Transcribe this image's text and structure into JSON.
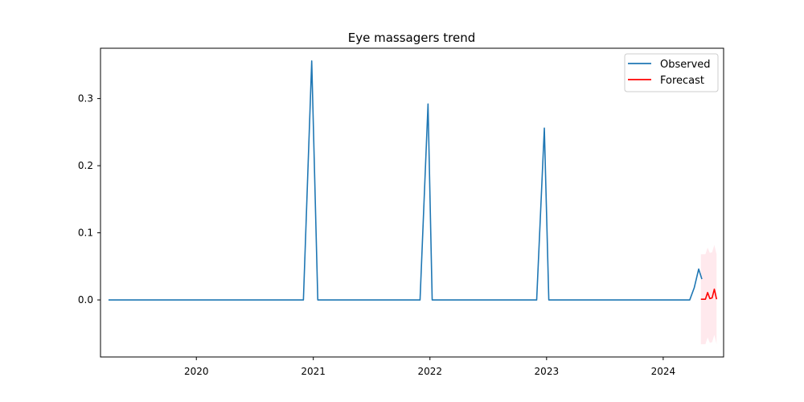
{
  "chart_data": {
    "type": "line",
    "title": "Eye massagers trend",
    "xlabel": "",
    "ylabel": "",
    "x_ticks": [
      "2020",
      "2021",
      "2022",
      "2023",
      "2024"
    ],
    "y_ticks": [
      "0.0",
      "0.1",
      "0.2",
      "0.3"
    ],
    "xlim": [
      "2019-03-07",
      "2024-07-08"
    ],
    "ylim": [
      -0.085,
      0.375
    ],
    "grid": false,
    "legend_position": "top-right",
    "series": [
      {
        "name": "Observed",
        "color": "#1f77b4",
        "points": [
          [
            "2019-04-01",
            0.0
          ],
          [
            "2020-12-01",
            0.0
          ],
          [
            "2020-12-27",
            0.356
          ],
          [
            "2021-01-15",
            0.0
          ],
          [
            "2021-12-01",
            0.0
          ],
          [
            "2021-12-26",
            0.292
          ],
          [
            "2022-01-08",
            0.0
          ],
          [
            "2022-12-01",
            0.0
          ],
          [
            "2022-12-25",
            0.256
          ],
          [
            "2023-01-08",
            0.0
          ],
          [
            "2024-03-24",
            0.0
          ],
          [
            "2024-04-07",
            0.018
          ],
          [
            "2024-04-21",
            0.046
          ],
          [
            "2024-05-01",
            0.031
          ]
        ]
      },
      {
        "name": "Forecast",
        "color": "#ff0000",
        "points": [
          [
            "2024-04-28",
            0.001
          ],
          [
            "2024-05-12",
            0.001
          ],
          [
            "2024-05-19",
            0.011
          ],
          [
            "2024-05-26",
            0.002
          ],
          [
            "2024-06-02",
            0.003
          ],
          [
            "2024-06-09",
            0.016
          ],
          [
            "2024-06-16",
            0.001
          ]
        ]
      }
    ],
    "confidence_band": {
      "color": "#ffc0cb",
      "points": [
        [
          "2024-04-28",
          -0.066,
          0.068
        ],
        [
          "2024-05-12",
          -0.066,
          0.068
        ],
        [
          "2024-05-19",
          -0.056,
          0.078
        ],
        [
          "2024-05-26",
          -0.064,
          0.07
        ],
        [
          "2024-06-02",
          -0.063,
          0.071
        ],
        [
          "2024-06-09",
          -0.052,
          0.082
        ],
        [
          "2024-06-16",
          -0.066,
          0.068
        ]
      ]
    }
  }
}
